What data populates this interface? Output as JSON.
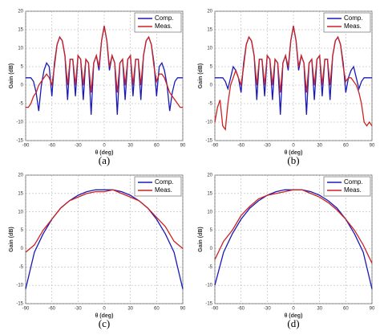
{
  "chart_data": [
    {
      "type": "line",
      "caption": "(a)",
      "xlabel": "θ (deg)",
      "ylabel": "Gain (dB)",
      "grid": true,
      "legend": "upper right",
      "xlim": [
        -90,
        90
      ],
      "ylim": [
        -15,
        20
      ],
      "xticks": [
        -90,
        -60,
        -30,
        0,
        30,
        60,
        90
      ],
      "yticks": [
        -15,
        -10,
        -5,
        0,
        5,
        10,
        15,
        20
      ],
      "x": [
        -90,
        -87,
        -84,
        -81,
        -78,
        -75,
        -72,
        -69,
        -66,
        -63,
        -60,
        -57,
        -54,
        -51,
        -48,
        -45,
        -42,
        -39,
        -36,
        -33,
        -30,
        -27,
        -24,
        -21,
        -18,
        -15,
        -12,
        -9,
        -6,
        -3,
        0,
        3,
        6,
        9,
        12,
        15,
        18,
        21,
        24,
        27,
        30,
        33,
        36,
        39,
        42,
        45,
        48,
        51,
        54,
        57,
        60,
        63,
        66,
        69,
        72,
        75,
        78,
        81,
        84,
        87,
        90
      ],
      "series": [
        {
          "name": "Comp.",
          "color": "#1a1ab8",
          "values": [
            2,
            2,
            2,
            1,
            -2,
            -7,
            0,
            4,
            6,
            5,
            -3,
            6,
            11,
            13,
            12,
            8,
            -4,
            7,
            7,
            -3,
            8,
            7,
            -4,
            7,
            6,
            -8,
            6,
            8,
            4,
            12,
            16,
            12,
            4,
            8,
            6,
            -8,
            6,
            7,
            -4,
            7,
            8,
            -3,
            7,
            7,
            -4,
            8,
            12,
            13,
            11,
            6,
            -3,
            5,
            6,
            4,
            0,
            -7,
            -2,
            1,
            2,
            2,
            2
          ]
        },
        {
          "name": "Meas.",
          "color": "#cc2222",
          "values": [
            -6,
            -6,
            -5,
            -3,
            -2,
            0,
            1,
            2,
            3,
            2,
            0,
            5,
            11,
            13,
            12,
            8,
            0,
            7,
            7,
            0,
            8,
            7,
            0,
            7,
            6,
            -2,
            6,
            8,
            5,
            12,
            16,
            12,
            5,
            8,
            6,
            -2,
            6,
            7,
            0,
            7,
            8,
            0,
            7,
            7,
            0,
            8,
            12,
            13,
            11,
            5,
            1,
            3,
            3,
            2,
            0,
            -2,
            -3,
            -4,
            -5,
            -6,
            -6
          ]
        }
      ]
    },
    {
      "type": "line",
      "caption": "(b)",
      "xlabel": "θ (deg)",
      "ylabel": "Gain (dB)",
      "grid": true,
      "legend": "upper right",
      "xlim": [
        -90,
        90
      ],
      "ylim": [
        -15,
        20
      ],
      "xticks": [
        -90,
        -60,
        -30,
        0,
        30,
        60,
        90
      ],
      "yticks": [
        -15,
        -10,
        -5,
        0,
        5,
        10,
        15,
        20
      ],
      "x": [
        -90,
        -87,
        -84,
        -81,
        -78,
        -75,
        -72,
        -69,
        -66,
        -63,
        -60,
        -57,
        -54,
        -51,
        -48,
        -45,
        -42,
        -39,
        -36,
        -33,
        -30,
        -27,
        -24,
        -21,
        -18,
        -15,
        -12,
        -9,
        -6,
        -3,
        0,
        3,
        6,
        9,
        12,
        15,
        18,
        21,
        24,
        27,
        30,
        33,
        36,
        39,
        42,
        45,
        48,
        51,
        54,
        57,
        60,
        63,
        66,
        69,
        72,
        75,
        78,
        81,
        84,
        87,
        90
      ],
      "series": [
        {
          "name": "Comp.",
          "color": "#1a1ab8",
          "values": [
            2,
            2,
            2,
            2,
            1,
            -1,
            2,
            5,
            4,
            2,
            -2,
            6,
            11,
            13,
            12,
            8,
            -4,
            7,
            7,
            -3,
            8,
            7,
            -4,
            7,
            6,
            -8,
            6,
            8,
            4,
            12,
            16,
            12,
            4,
            8,
            6,
            -8,
            6,
            7,
            -4,
            7,
            8,
            -3,
            7,
            7,
            -4,
            8,
            12,
            13,
            11,
            6,
            -2,
            2,
            4,
            5,
            2,
            -1,
            1,
            2,
            2,
            2,
            2
          ]
        },
        {
          "name": "Meas.",
          "color": "#cc2222",
          "values": [
            -10,
            -6,
            -4,
            -11,
            -12,
            -5,
            0,
            2,
            4,
            2,
            0,
            5,
            11,
            13,
            12,
            8,
            0,
            7,
            7,
            0,
            8,
            7,
            0,
            7,
            6,
            -2,
            6,
            8,
            5,
            12,
            16,
            12,
            5,
            8,
            6,
            -2,
            6,
            7,
            0,
            7,
            8,
            0,
            7,
            7,
            0,
            8,
            12,
            13,
            11,
            5,
            1,
            2,
            2,
            1,
            0,
            -2,
            -5,
            -10,
            -11,
            -10,
            -11
          ]
        }
      ]
    },
    {
      "type": "line",
      "caption": "(c)",
      "xlabel": "θ (deg)",
      "ylabel": "Gain (dB)",
      "grid": true,
      "legend": "upper right",
      "xlim": [
        -90,
        90
      ],
      "ylim": [
        -15,
        20
      ],
      "xticks": [
        -90,
        -60,
        -30,
        0,
        30,
        60,
        90
      ],
      "yticks": [
        -15,
        -10,
        -5,
        0,
        5,
        10,
        15,
        20
      ],
      "x": [
        -90,
        -80,
        -70,
        -60,
        -50,
        -40,
        -30,
        -20,
        -10,
        0,
        10,
        20,
        30,
        40,
        50,
        60,
        70,
        80,
        90
      ],
      "series": [
        {
          "name": "Comp.",
          "color": "#1a1ab8",
          "values": [
            -11,
            -1,
            4,
            8,
            11,
            13,
            14.5,
            15.5,
            16,
            16,
            16,
            15.5,
            14.5,
            13,
            11,
            8,
            4,
            -1,
            -11
          ]
        },
        {
          "name": "Meas.",
          "color": "#cc2222",
          "values": [
            -1,
            1,
            5,
            8,
            11,
            13,
            14,
            15,
            15.5,
            15.5,
            16,
            15,
            14,
            13,
            11,
            8.5,
            6,
            2,
            0
          ]
        }
      ]
    },
    {
      "type": "line",
      "caption": "(d)",
      "xlabel": "θ (deg)",
      "ylabel": "Gain (dB)",
      "grid": true,
      "legend": "upper right",
      "xlim": [
        -90,
        90
      ],
      "ylim": [
        -15,
        20
      ],
      "xticks": [
        -90,
        -60,
        -30,
        0,
        30,
        60,
        90
      ],
      "yticks": [
        -15,
        -10,
        -5,
        0,
        5,
        10,
        15,
        20
      ],
      "x": [
        -90,
        -80,
        -70,
        -60,
        -50,
        -40,
        -30,
        -20,
        -10,
        0,
        10,
        20,
        30,
        40,
        50,
        60,
        70,
        80,
        90
      ],
      "series": [
        {
          "name": "Comp.",
          "color": "#1a1ab8",
          "values": [
            -10,
            -1,
            4,
            8,
            11,
            13,
            14.5,
            15.5,
            16,
            16,
            16,
            15.5,
            14.5,
            13,
            11,
            8,
            4,
            -1,
            -11
          ]
        },
        {
          "name": "Meas.",
          "color": "#cc2222",
          "values": [
            -3,
            2,
            5,
            9,
            11.5,
            13.5,
            14.5,
            15,
            15.5,
            16,
            16,
            15,
            14,
            12.5,
            10.5,
            8,
            5,
            1,
            -4
          ]
        }
      ]
    }
  ]
}
